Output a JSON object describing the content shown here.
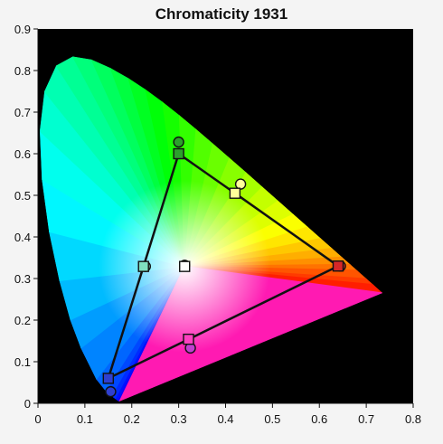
{
  "chart_data": {
    "type": "scatter",
    "title": "Chromaticity 1931",
    "xlabel": "",
    "ylabel": "",
    "xlim": [
      0,
      0.8
    ],
    "ylim": [
      0,
      0.9
    ],
    "x_ticks": [
      "0",
      "0.1",
      "0.2",
      "0.3",
      "0.4",
      "0.5",
      "0.6",
      "0.7",
      "0.8"
    ],
    "y_ticks": [
      "0",
      "0.1",
      "0.2",
      "0.3",
      "0.4",
      "0.5",
      "0.6",
      "0.7",
      "0.8",
      "0.9"
    ],
    "plot_background": "#000000",
    "spectral_locus": [
      [
        0.1741,
        0.005
      ],
      [
        0.1721,
        0.0048
      ],
      [
        0.1689,
        0.0069
      ],
      [
        0.1644,
        0.0109
      ],
      [
        0.1566,
        0.0177
      ],
      [
        0.144,
        0.0297
      ],
      [
        0.1241,
        0.0578
      ],
      [
        0.0913,
        0.1327
      ],
      [
        0.0687,
        0.2007
      ],
      [
        0.0454,
        0.295
      ],
      [
        0.0235,
        0.4127
      ],
      [
        0.0082,
        0.5384
      ],
      [
        0.0039,
        0.6548
      ],
      [
        0.0139,
        0.7502
      ],
      [
        0.0389,
        0.812
      ],
      [
        0.0743,
        0.8338
      ],
      [
        0.1142,
        0.8262
      ],
      [
        0.1547,
        0.8059
      ],
      [
        0.1929,
        0.7816
      ],
      [
        0.2296,
        0.7543
      ],
      [
        0.2658,
        0.7243
      ],
      [
        0.3016,
        0.6923
      ],
      [
        0.3373,
        0.6589
      ],
      [
        0.3731,
        0.6245
      ],
      [
        0.4087,
        0.5896
      ],
      [
        0.4441,
        0.5547
      ],
      [
        0.4788,
        0.5202
      ],
      [
        0.5125,
        0.4866
      ],
      [
        0.5448,
        0.4544
      ],
      [
        0.5752,
        0.4242
      ],
      [
        0.6029,
        0.3965
      ],
      [
        0.627,
        0.3725
      ],
      [
        0.6482,
        0.3514
      ],
      [
        0.6658,
        0.334
      ],
      [
        0.6801,
        0.3197
      ],
      [
        0.7006,
        0.2993
      ],
      [
        0.7147,
        0.2853
      ],
      [
        0.7347,
        0.2653
      ]
    ],
    "series": [
      {
        "marker": "square",
        "closed": true,
        "points": [
          {
            "x": 0.64,
            "y": 0.33,
            "color": "#d62728"
          },
          {
            "x": 0.42,
            "y": 0.505,
            "color": "#ffff9a"
          },
          {
            "x": 0.3,
            "y": 0.6,
            "color": "#2ca02c"
          },
          {
            "x": 0.225,
            "y": 0.329,
            "color": "#7fe0c0"
          },
          {
            "x": 0.15,
            "y": 0.06,
            "color": "#2f3fd0"
          },
          {
            "x": 0.321,
            "y": 0.154,
            "color": "#ff40c0"
          },
          {
            "x": 0.3127,
            "y": 0.329,
            "color": "#ffffff"
          }
        ]
      },
      {
        "marker": "circle",
        "points": [
          {
            "x": 0.645,
            "y": 0.33,
            "color": "#d62728"
          },
          {
            "x": 0.432,
            "y": 0.527,
            "color": "#ffff9a"
          },
          {
            "x": 0.3,
            "y": 0.628,
            "color": "#2ca02c"
          },
          {
            "x": 0.229,
            "y": 0.329,
            "color": "#7fe0c0"
          },
          {
            "x": 0.155,
            "y": 0.028,
            "color": "#2f3fd0"
          },
          {
            "x": 0.325,
            "y": 0.133,
            "color": "#c040d0"
          },
          {
            "x": 0.3127,
            "y": 0.332,
            "color": "#ffffff"
          }
        ]
      }
    ]
  }
}
